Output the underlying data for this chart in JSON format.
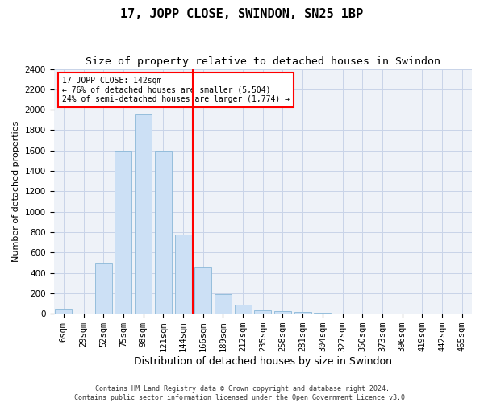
{
  "title": "17, JOPP CLOSE, SWINDON, SN25 1BP",
  "subtitle": "Size of property relative to detached houses in Swindon",
  "xlabel": "Distribution of detached houses by size in Swindon",
  "ylabel": "Number of detached properties",
  "bar_labels": [
    "6sqm",
    "29sqm",
    "52sqm",
    "75sqm",
    "98sqm",
    "121sqm",
    "144sqm",
    "166sqm",
    "189sqm",
    "212sqm",
    "235sqm",
    "258sqm",
    "281sqm",
    "304sqm",
    "327sqm",
    "350sqm",
    "373sqm",
    "396sqm",
    "419sqm",
    "442sqm",
    "465sqm"
  ],
  "bar_values": [
    50,
    2,
    500,
    1600,
    1950,
    1600,
    780,
    460,
    195,
    90,
    30,
    25,
    20,
    10,
    2,
    2,
    1,
    1,
    0,
    0,
    0
  ],
  "bar_color": "#cce0f5",
  "bar_edge_color": "#8ab8d8",
  "vline_pos": 6.5,
  "vline_color": "red",
  "annotation_text": "17 JOPP CLOSE: 142sqm\n← 76% of detached houses are smaller (5,504)\n24% of semi-detached houses are larger (1,774) →",
  "annotation_box_color": "white",
  "annotation_box_edge_color": "red",
  "ylim_max": 2400,
  "yticks": [
    0,
    200,
    400,
    600,
    800,
    1000,
    1200,
    1400,
    1600,
    1800,
    2000,
    2200,
    2400
  ],
  "title_fontsize": 11,
  "subtitle_fontsize": 9.5,
  "xlabel_fontsize": 9,
  "ylabel_fontsize": 8,
  "tick_fontsize": 7.5,
  "annotation_fontsize": 7,
  "footer_fontsize": 6,
  "footer_text": "Contains HM Land Registry data © Crown copyright and database right 2024.\nContains public sector information licensed under the Open Government Licence v3.0.",
  "grid_color": "#c8d4e8",
  "bg_color": "#eef2f8"
}
